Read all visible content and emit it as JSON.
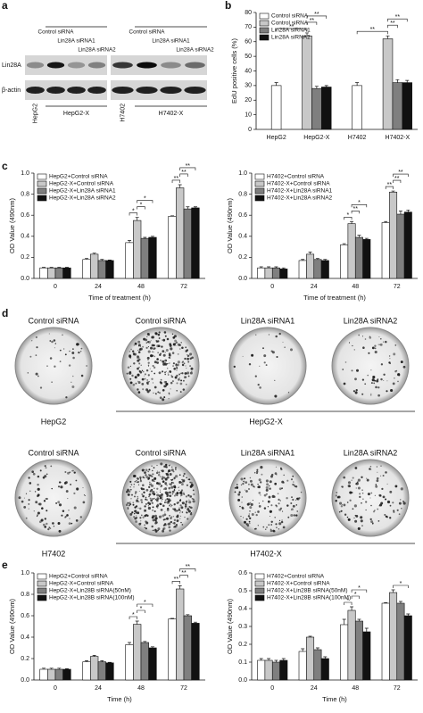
{
  "panel_labels": [
    "a",
    "b",
    "c",
    "d",
    "e"
  ],
  "blot": {
    "column_headers": [
      "Control siRNA",
      "Lin28A siRNA1",
      "Lin28A siRNA2",
      "Control siRNA",
      "Lin28A siRNA1",
      "Lin28A siRNA2"
    ],
    "row_labels": [
      "Lin28A",
      "β-actin"
    ],
    "cell_lines": [
      "HepG2",
      "HepG2-X",
      "H7402",
      "H7402-X"
    ]
  },
  "chart_data": [
    {
      "type": "bar",
      "ylabel": "EdU positive cells (%)",
      "categories": [
        "HepG2",
        "HepG2-X",
        "H7402",
        "H7402-X"
      ],
      "series": [
        {
          "name": "Control siRNA",
          "color": "#ffffff",
          "values": [
            30,
            null,
            30,
            null
          ],
          "errors": [
            2,
            null,
            2,
            null
          ]
        },
        {
          "name": "Control siRNA",
          "color": "#c8c8c8",
          "values": [
            null,
            64,
            null,
            62
          ],
          "errors": [
            null,
            2,
            null,
            2
          ]
        },
        {
          "name": "Lin28A siRNA1",
          "color": "#7f7f7f",
          "values": [
            null,
            28,
            null,
            32
          ],
          "errors": [
            null,
            1.5,
            null,
            2
          ]
        },
        {
          "name": "Lin28A siRNA2",
          "color": "#111111",
          "values": [
            null,
            29,
            null,
            32
          ],
          "errors": [
            null,
            1,
            null,
            1.5
          ]
        }
      ],
      "ylim": [
        0,
        80
      ],
      "yticks": [
        0,
        10,
        20,
        30,
        40,
        50,
        60,
        70,
        80
      ],
      "legend": "upper left",
      "annotations": [
        "**",
        "**",
        "**",
        "**",
        "**",
        "**"
      ]
    },
    {
      "type": "bar",
      "ylabel": "OD Value (490nm)",
      "xlabel": "Time of treatment (h)",
      "categories": [
        "0",
        "24",
        "48",
        "72"
      ],
      "series": [
        {
          "name": "HepG2+Control siRNA",
          "color": "#ffffff",
          "values": [
            0.1,
            0.18,
            0.34,
            0.59
          ],
          "errors": [
            0.005,
            0.01,
            0.02,
            0.005
          ]
        },
        {
          "name": "HepG2-X+Control siRNA",
          "color": "#c8c8c8",
          "values": [
            0.1,
            0.23,
            0.55,
            0.86
          ],
          "errors": [
            0.005,
            0.01,
            0.03,
            0.03
          ]
        },
        {
          "name": "HepG2-X+Lin28A siRNA1",
          "color": "#7f7f7f",
          "values": [
            0.1,
            0.17,
            0.38,
            0.66
          ],
          "errors": [
            0.005,
            0.01,
            0.01,
            0.02
          ]
        },
        {
          "name": "HepG2-X+Lin28A siRNA2",
          "color": "#111111",
          "values": [
            0.1,
            0.17,
            0.39,
            0.67
          ],
          "errors": [
            0.005,
            0.005,
            0.01,
            0.01
          ]
        }
      ],
      "ylim": [
        0,
        1
      ],
      "yticks": [
        {
          "value": 0,
          "label": "0.0"
        },
        0.2,
        0.4,
        0.6,
        0.8,
        {
          "value": 1,
          "label": "1.0"
        }
      ],
      "legend": "upper left",
      "annotations": [
        "*",
        "*",
        "*",
        "**",
        "**",
        "**"
      ]
    },
    {
      "type": "bar",
      "ylabel": "OD Value (490nm)",
      "xlabel": "Time of treatment (h)",
      "categories": [
        "0",
        "24",
        "48",
        "72"
      ],
      "series": [
        {
          "name": "H7402+Control siRNA",
          "color": "#ffffff",
          "values": [
            0.1,
            0.17,
            0.32,
            0.53
          ],
          "errors": [
            0.01,
            0.01,
            0.01,
            0.01
          ]
        },
        {
          "name": "H7402-X+Control siRNA",
          "color": "#c8c8c8",
          "values": [
            0.1,
            0.23,
            0.52,
            0.82
          ],
          "errors": [
            0.01,
            0.02,
            0.02,
            0.01
          ]
        },
        {
          "name": "H7402-X+Lin28A siRNA1",
          "color": "#7f7f7f",
          "values": [
            0.1,
            0.18,
            0.39,
            0.61
          ],
          "errors": [
            0.01,
            0.01,
            0.02,
            0.03
          ]
        },
        {
          "name": "H7402-X+Lin28A siRNA2",
          "color": "#111111",
          "values": [
            0.09,
            0.17,
            0.37,
            0.63
          ],
          "errors": [
            0.01,
            0.01,
            0.01,
            0.02
          ]
        }
      ],
      "ylim": [
        0,
        1
      ],
      "yticks": [
        {
          "value": 0,
          "label": "0.0"
        },
        0.2,
        0.4,
        0.6,
        0.8,
        {
          "value": 1,
          "label": "1.0"
        }
      ],
      "legend": "upper left",
      "annotations": [
        "*",
        "**",
        "*",
        "**",
        "**",
        "**"
      ]
    },
    {
      "type": "bar",
      "ylabel": "OD Value (490nm)",
      "xlabel": "Time (h)",
      "categories": [
        "0",
        "24",
        "48",
        "72"
      ],
      "series": [
        {
          "name": "HepG2+Control siRNA",
          "color": "#ffffff",
          "values": [
            0.1,
            0.17,
            0.33,
            0.57
          ],
          "errors": [
            0.01,
            0.01,
            0.02,
            0.005
          ]
        },
        {
          "name": "HepG2-X+Control siRNA",
          "color": "#c8c8c8",
          "values": [
            0.1,
            0.22,
            0.52,
            0.85
          ],
          "errors": [
            0.01,
            0.01,
            0.03,
            0.03
          ]
        },
        {
          "name": "HepG2-X+Lin28B siRNA(50nM)",
          "color": "#7f7f7f",
          "values": [
            0.1,
            0.17,
            0.35,
            0.6
          ],
          "errors": [
            0.01,
            0.01,
            0.01,
            0.01
          ]
        },
        {
          "name": "HepG2-X+Lin28B siRNA(100nM)",
          "color": "#111111",
          "values": [
            0.1,
            0.16,
            0.3,
            0.53
          ],
          "errors": [
            0.005,
            0.005,
            0.01,
            0.01
          ]
        }
      ],
      "ylim": [
        0,
        1
      ],
      "yticks": [
        {
          "value": 0,
          "label": "0.0"
        },
        0.2,
        0.4,
        0.6,
        0.8,
        {
          "value": 1,
          "label": "1.0"
        }
      ],
      "legend": "upper left",
      "annotations": [
        "*",
        "*",
        "*",
        "**",
        "**",
        "**"
      ]
    },
    {
      "type": "bar",
      "ylabel": "OD Value (490nm)",
      "xlabel": "Time (h)",
      "categories": [
        "0",
        "24",
        "48",
        "72"
      ],
      "series": [
        {
          "name": "H7402+Control siRNA",
          "color": "#ffffff",
          "values": [
            0.11,
            0.16,
            0.31,
            0.43
          ],
          "errors": [
            0.01,
            0.015,
            0.03,
            0.003
          ]
        },
        {
          "name": "H7402-X+Control siRNA",
          "color": "#c8c8c8",
          "values": [
            0.11,
            0.24,
            0.39,
            0.49
          ],
          "errors": [
            0.01,
            0.005,
            0.02,
            0.015
          ]
        },
        {
          "name": "H7402-X+Lin28B siRNA(50nM)",
          "color": "#7f7f7f",
          "values": [
            0.1,
            0.17,
            0.33,
            0.43
          ],
          "errors": [
            0.01,
            0.01,
            0.01,
            0.01
          ]
        },
        {
          "name": "H7402-X+Lin28B siRNA(100nM)",
          "color": "#111111",
          "values": [
            0.11,
            0.12,
            0.27,
            0.36
          ],
          "errors": [
            0.01,
            0.01,
            0.02,
            0.01
          ]
        }
      ],
      "ylim": [
        0,
        0.6
      ],
      "yticks": [
        {
          "value": 0,
          "label": "0.0"
        },
        0.1,
        0.2,
        0.3,
        0.4,
        0.5,
        0.6
      ],
      "legend": "upper left",
      "annotations": [
        "*",
        "*",
        "*",
        "*"
      ]
    }
  ],
  "colony": {
    "rows": [
      {
        "headers": [
          "Control siRNA",
          "Control siRNA",
          "Lin28A siRNA1",
          "Lin28A siRNA2"
        ],
        "parental": "HepG2",
        "transfected": "HepG2-X"
      },
      {
        "headers": [
          "Control siRNA",
          "Control siRNA",
          "Lin28A siRNA1",
          "Lin28A  siRNA2"
        ],
        "parental": "H7402",
        "transfected": "H7402-X"
      }
    ]
  }
}
